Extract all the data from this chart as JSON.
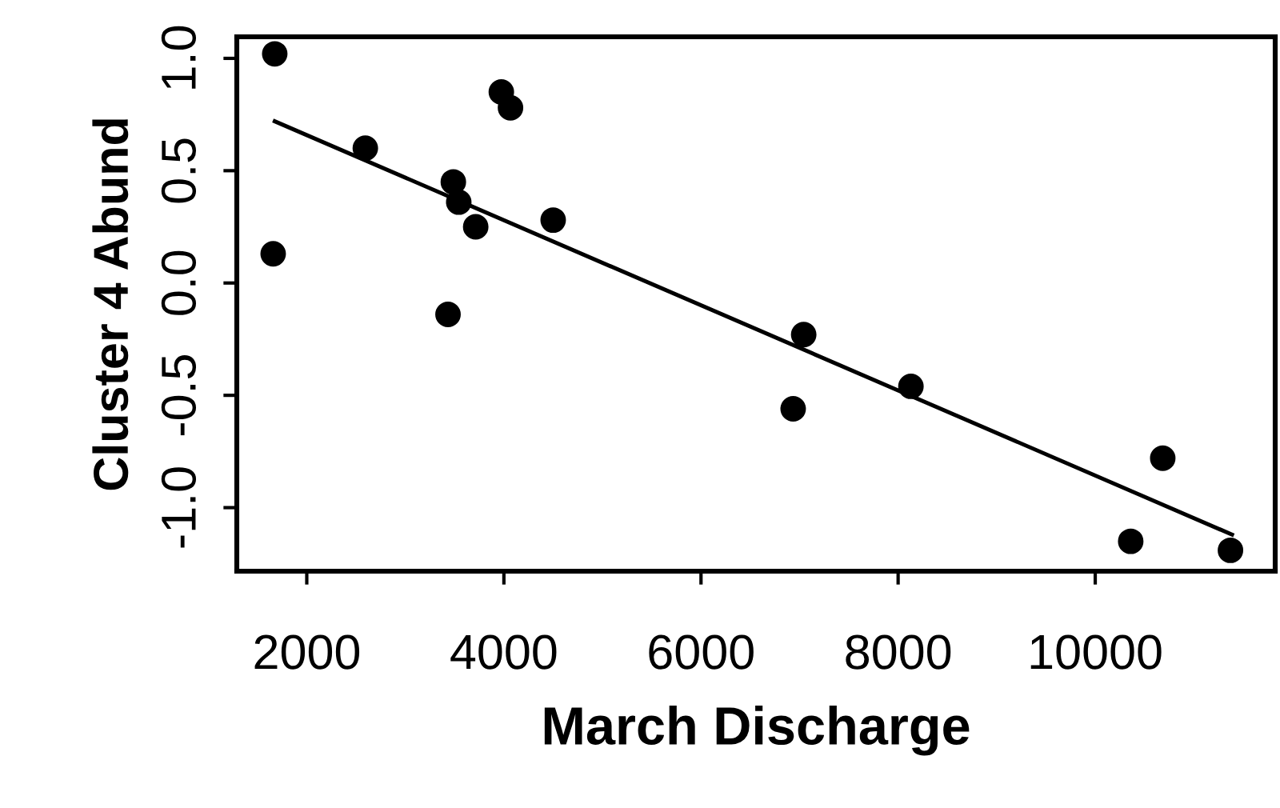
{
  "chart_data": {
    "type": "scatter",
    "xlabel": "March Discharge",
    "ylabel": "Cluster 4 Abund",
    "xlim": [
      1290,
      11826
    ],
    "ylim": [
      -1.283,
      1.096
    ],
    "xticks": [
      2000,
      4000,
      6000,
      8000,
      10000
    ],
    "yticks": [
      {
        "value": -1.0,
        "label": "-1.0"
      },
      {
        "value": -0.5,
        "label": "-0.5"
      },
      {
        "value": 0.0,
        "label": "0.0"
      },
      {
        "value": 0.5,
        "label": "0.5"
      },
      {
        "value": 1.0,
        "label": "1.0"
      }
    ],
    "grid": false,
    "legend": false,
    "marker": "circle",
    "series": [
      {
        "color": "#000000",
        "x": [
          1675,
          1659,
          2594,
          3487,
          3542,
          3714,
          3433,
          3974,
          4067,
          4500,
          7042,
          6935,
          8130,
          10685,
          10360,
          11372
        ],
        "values": [
          1.02,
          0.13,
          0.6,
          0.45,
          0.36,
          0.25,
          -0.14,
          0.85,
          0.78,
          0.28,
          -0.23,
          -0.56,
          -0.46,
          -0.78,
          -1.15,
          -1.19
        ]
      },
      {
        "type": "line",
        "color": "#000000",
        "marker": "none",
        "line_style": "solid",
        "x": [
          1675,
          11388
        ],
        "values": [
          0.72,
          -1.12
        ]
      }
    ]
  }
}
